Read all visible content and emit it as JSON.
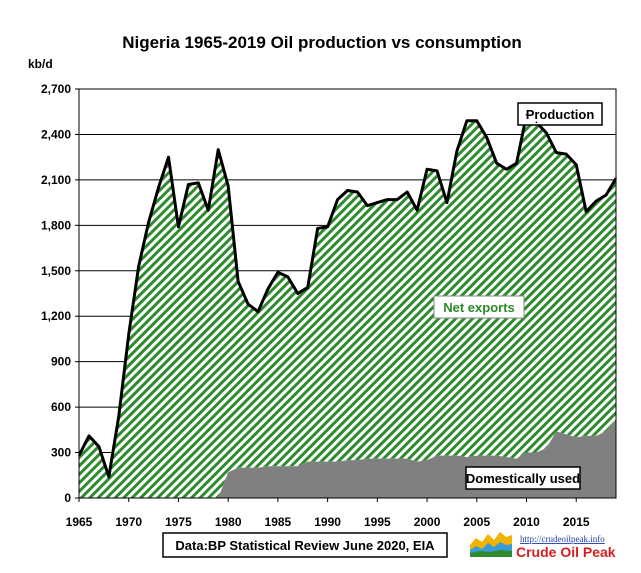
{
  "chart_data": {
    "type": "area",
    "title": "Nigeria 1965-2019 Oil production  vs consumption",
    "ylabel": "kb/d",
    "xlabel": "",
    "ylim": [
      0,
      2700
    ],
    "xlim": [
      1965,
      2019
    ],
    "yticks": [
      "0",
      "300",
      "600",
      "900",
      "1,200",
      "1,500",
      "1,800",
      "2,100",
      "2,400",
      "2,700"
    ],
    "xticks": [
      "1965",
      "1970",
      "1975",
      "1980",
      "1985",
      "1990",
      "1995",
      "2000",
      "2005",
      "2010",
      "2015"
    ],
    "grid": true,
    "years": [
      1965,
      1966,
      1967,
      1968,
      1969,
      1970,
      1971,
      1972,
      1973,
      1974,
      1975,
      1976,
      1977,
      1978,
      1979,
      1980,
      1981,
      1982,
      1983,
      1984,
      1985,
      1986,
      1987,
      1988,
      1989,
      1990,
      1991,
      1992,
      1993,
      1994,
      1995,
      1996,
      1997,
      1998,
      1999,
      2000,
      2001,
      2002,
      2003,
      2004,
      2005,
      2006,
      2007,
      2008,
      2009,
      2010,
      2011,
      2012,
      2013,
      2014,
      2015,
      2016,
      2017,
      2018,
      2019
    ],
    "series": [
      {
        "name": "Production",
        "values": [
          280,
          410,
          340,
          140,
          540,
          1080,
          1530,
          1820,
          2050,
          2250,
          1790,
          2070,
          2080,
          1900,
          2300,
          2060,
          1430,
          1280,
          1230,
          1380,
          1490,
          1460,
          1350,
          1390,
          1780,
          1790,
          1970,
          2030,
          2020,
          1930,
          1950,
          1970,
          1970,
          2020,
          1900,
          2170,
          2160,
          1950,
          2290,
          2490,
          2490,
          2380,
          2210,
          2170,
          2210,
          2530,
          2480,
          2410,
          2280,
          2270,
          2200,
          1890,
          1960,
          2000,
          2110
        ]
      },
      {
        "name": "Domestically used",
        "values": [
          0,
          0,
          0,
          0,
          0,
          0,
          0,
          0,
          0,
          0,
          0,
          0,
          0,
          0,
          0,
          170,
          200,
          200,
          200,
          210,
          210,
          210,
          210,
          240,
          240,
          240,
          240,
          250,
          250,
          260,
          260,
          260,
          260,
          260,
          240,
          250,
          280,
          280,
          280,
          270,
          280,
          280,
          280,
          270,
          260,
          300,
          300,
          330,
          440,
          420,
          400,
          410,
          410,
          440,
          520
        ]
      }
    ],
    "annotations": {
      "production": "Production",
      "net_exports": "Net exports",
      "domestic": "Domestically used",
      "source": "Data:BP Statistical Review June 2020, EIA"
    },
    "colors": {
      "production_line": "#000000",
      "net_exports_hatch": "#2e8b2e",
      "net_exports_text": "#2a8a2a",
      "domestic_fill": "#808080",
      "grid": "#000000"
    }
  },
  "logo": {
    "url": "http://crudeoilpeak.info",
    "name": "Crude Oil Peak"
  }
}
